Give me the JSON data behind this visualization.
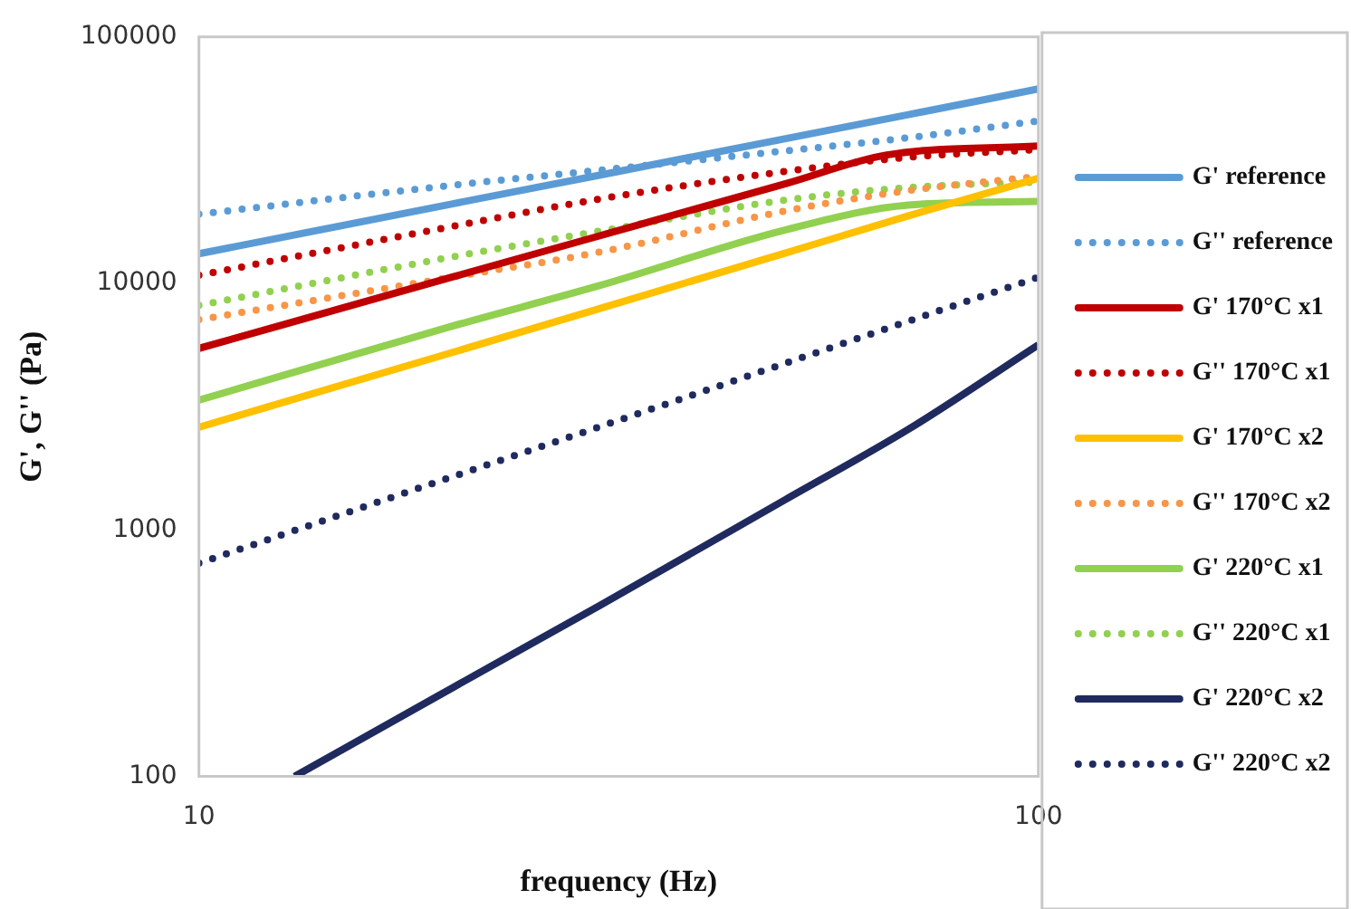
{
  "chart_data": {
    "type": "line",
    "xlabel": "frequency (Hz)",
    "ylabel": "G', G'' (Pa)",
    "log": "xy",
    "x": [
      10,
      20,
      30,
      50,
      70,
      100
    ],
    "xlim": [
      10,
      100
    ],
    "xticks": [
      10,
      100
    ],
    "ylim": [
      100,
      100000
    ],
    "yticks": [
      100,
      1000,
      10000,
      100000
    ],
    "grid": false,
    "legend": "right",
    "marker": "none",
    "series": [
      {
        "name": "G' reference",
        "color": "#5b9bd5",
        "line_style": "solid",
        "values": [
          13200,
          21000,
          27500,
          38700,
          48400,
          61500
        ]
      },
      {
        "name": "G'' reference",
        "color": "#5b9bd5",
        "line_style": "dotted",
        "values": [
          19100,
          25000,
          28800,
          34500,
          39000,
          45600
        ]
      },
      {
        "name": "G' 170°C x1",
        "color": "#c00000",
        "line_style": "solid",
        "x": [
          10,
          20,
          30,
          50,
          66,
          100
        ],
        "values": [
          5450,
          10600,
          15600,
          25400,
          33200,
          36100
        ]
      },
      {
        "name": "G'' 170°C x1",
        "color": "#c00000",
        "line_style": "dotted",
        "values": [
          10800,
          17000,
          22000,
          28500,
          32500,
          34900
        ]
      },
      {
        "name": "G' 170°C x2",
        "color": "#ffc000",
        "line_style": "solid",
        "values": [
          2610,
          5240,
          7900,
          13300,
          18800,
          26700
        ]
      },
      {
        "name": "G'' 170°C x2",
        "color": "#f79646",
        "line_style": "dotted",
        "values": [
          7130,
          10600,
          13400,
          19700,
          23800,
          27200
        ]
      },
      {
        "name": "G' 220°C x1",
        "color": "#92d050",
        "line_style": "solid",
        "values": [
          3360,
          6700,
          9800,
          16500,
          20800,
          21500
        ]
      },
      {
        "name": "G'' 220°C x1",
        "color": "#92d050",
        "line_style": "dotted",
        "values": [
          8150,
          12800,
          16300,
          21800,
          24500,
          25800
        ]
      },
      {
        "name": "G' 220°C x2",
        "color": "#1f2a5e",
        "line_style": "solid",
        "x": [
          13,
          20,
          30,
          50,
          70,
          100
        ],
        "values": [
          100,
          228,
          493,
          1330,
          2560,
          5640
        ]
      },
      {
        "name": "G'' 220°C x2",
        "color": "#1f2a5e",
        "line_style": "dotted",
        "values": [
          733,
          1640,
          2620,
          4750,
          7030,
          10600
        ]
      }
    ]
  }
}
